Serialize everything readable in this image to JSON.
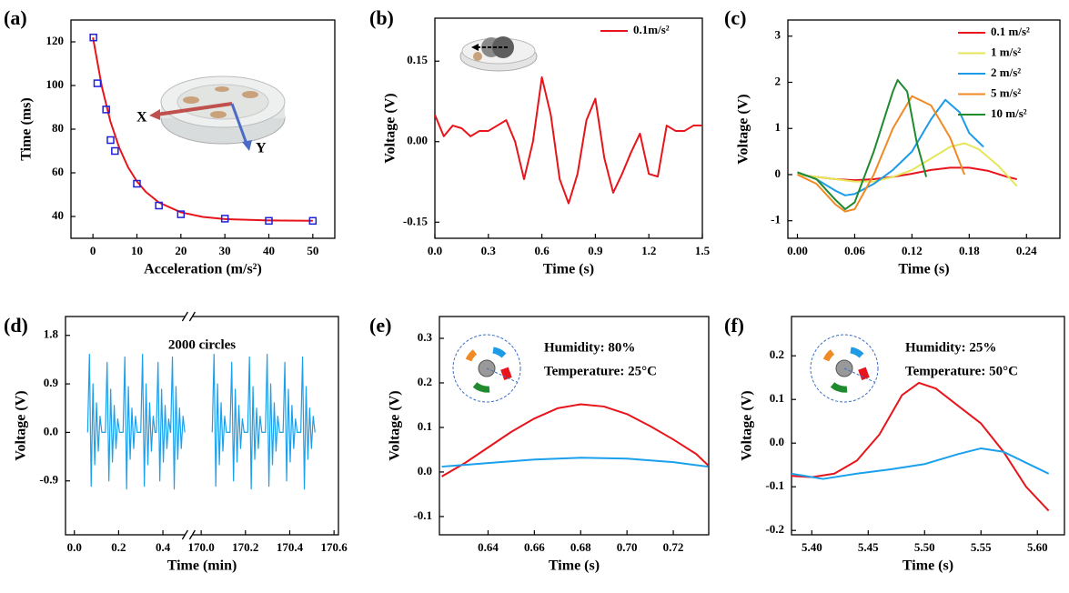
{
  "chart_data": [
    {
      "type": "scatter",
      "panel_label": "(a)",
      "xlabel": "Acceleration (m/s²)",
      "ylabel": "Time (ms)",
      "xlim": [
        -5,
        55
      ],
      "ylim": [
        30,
        130
      ],
      "xticks": [
        0,
        10,
        20,
        30,
        40,
        50
      ],
      "yticks": [
        40,
        60,
        80,
        100,
        120
      ],
      "annotations": [
        "X",
        "Y"
      ],
      "series": [
        {
          "style": "marker",
          "color": "#1f1fd6",
          "x": [
            0.1,
            1,
            3,
            4,
            5,
            10,
            15,
            20,
            30,
            40,
            50
          ],
          "values": [
            122,
            101,
            89,
            75,
            70,
            55,
            45,
            41,
            39,
            38,
            38
          ]
        },
        {
          "style": "line",
          "color": "#e8141b",
          "x": [
            0,
            2,
            4,
            6,
            8,
            10,
            12,
            15,
            20,
            25,
            30,
            40,
            50
          ],
          "values": [
            122,
            99.7,
            83.3,
            71.4,
            62.5,
            56.1,
            51.3,
            46.4,
            41.9,
            39.8,
            38.8,
            38.2,
            38.0
          ]
        }
      ]
    },
    {
      "type": "line",
      "panel_label": "(b)",
      "xlabel": "Time (s)",
      "ylabel": "Voltage (V)",
      "xlim": [
        0,
        1.5
      ],
      "ylim": [
        -0.18,
        0.23
      ],
      "xticks": [
        {
          "value": 0,
          "label": "0.0"
        },
        0.3,
        0.6,
        0.9,
        1.2,
        1.5
      ],
      "yticks": [
        -0.15,
        {
          "value": 0,
          "label": "0.00"
        },
        0.15
      ],
      "legend": "upper right",
      "series": [
        {
          "name": "0.1m/s²",
          "color": "#e8141b",
          "x": [
            0,
            0.05,
            0.1,
            0.15,
            0.2,
            0.25,
            0.3,
            0.35,
            0.4,
            0.45,
            0.5,
            0.55,
            0.6,
            0.65,
            0.7,
            0.75,
            0.8,
            0.85,
            0.9,
            0.95,
            1.0,
            1.05,
            1.1,
            1.15,
            1.2,
            1.25,
            1.3,
            1.35,
            1.4,
            1.45,
            1.5
          ],
          "values": [
            0.05,
            0.01,
            0.03,
            0.025,
            0.01,
            0.02,
            0.02,
            0.03,
            0.04,
            0.0,
            -0.07,
            0.0,
            0.12,
            0.05,
            -0.07,
            -0.115,
            -0.06,
            0.04,
            0.08,
            -0.03,
            -0.095,
            -0.06,
            -0.02,
            0.015,
            -0.06,
            -0.065,
            0.03,
            0.02,
            0.02,
            0.03,
            0.03
          ]
        }
      ]
    },
    {
      "type": "line",
      "panel_label": "(c)",
      "xlabel": "Time (s)",
      "ylabel": "Voltage (V)",
      "xlim": [
        -0.01,
        0.275
      ],
      "ylim": [
        -1.38,
        3.35
      ],
      "xticks": [
        {
          "value": 0,
          "label": "0.00"
        },
        0.06,
        0.12,
        0.18,
        0.24
      ],
      "yticks": [
        -1,
        0,
        1,
        2,
        3
      ],
      "legend": "upper right",
      "series": [
        {
          "name": "0.1 m/s²",
          "color": "#e8141b",
          "x": [
            0,
            0.02,
            0.04,
            0.06,
            0.08,
            0.1,
            0.12,
            0.14,
            0.16,
            0.18,
            0.2,
            0.22,
            0.23
          ],
          "values": [
            0,
            -0.05,
            -0.1,
            -0.12,
            -0.1,
            -0.05,
            0.02,
            0.1,
            0.15,
            0.15,
            0.08,
            -0.05,
            -0.1
          ]
        },
        {
          "name": "1 m/s²",
          "color": "#e6e65a",
          "x": [
            0,
            0.02,
            0.04,
            0.06,
            0.08,
            0.1,
            0.12,
            0.14,
            0.16,
            0.175,
            0.19,
            0.21,
            0.23
          ],
          "values": [
            0,
            -0.05,
            -0.1,
            -0.15,
            -0.15,
            -0.05,
            0.1,
            0.35,
            0.6,
            0.68,
            0.55,
            0.2,
            -0.25
          ]
        },
        {
          "name": "2 m/s²",
          "color": "#1e9be6",
          "x": [
            0,
            0.02,
            0.04,
            0.05,
            0.06,
            0.08,
            0.1,
            0.12,
            0.14,
            0.155,
            0.17,
            0.18,
            0.195
          ],
          "values": [
            0.05,
            -0.1,
            -0.35,
            -0.45,
            -0.42,
            -0.2,
            0.1,
            0.5,
            1.2,
            1.62,
            1.35,
            0.9,
            0.6
          ]
        },
        {
          "name": "5 m/s²",
          "color": "#f08a24",
          "x": [
            0,
            0.02,
            0.04,
            0.05,
            0.06,
            0.08,
            0.1,
            0.12,
            0.14,
            0.16,
            0.175
          ],
          "values": [
            0,
            -0.2,
            -0.65,
            -0.8,
            -0.75,
            0.0,
            1.0,
            1.7,
            1.5,
            0.8,
            0.0
          ]
        },
        {
          "name": "10 m/s²",
          "color": "#1f8a2e",
          "x": [
            0,
            0.02,
            0.04,
            0.05,
            0.06,
            0.08,
            0.1,
            0.105,
            0.115,
            0.125,
            0.135
          ],
          "values": [
            0.05,
            -0.1,
            -0.55,
            -0.75,
            -0.6,
            0.5,
            1.8,
            2.05,
            1.8,
            0.7,
            -0.05
          ]
        }
      ]
    },
    {
      "type": "line",
      "panel_label": "(d)",
      "xlabel": "Time (min)",
      "ylabel": "Voltage (V)",
      "xlim": [
        -0.04,
        170.62
      ],
      "xbreak": [
        0.5,
        169.96
      ],
      "ylim": [
        -1.9,
        2.15
      ],
      "xticks": [
        {
          "value": 0,
          "label": "0.0"
        },
        0.2,
        0.4,
        {
          "value": 170,
          "label": "170.0"
        },
        170.2,
        170.4,
        170.6
      ],
      "yticks": [
        -0.9,
        {
          "value": 0,
          "label": "0.0"
        },
        0.9,
        1.8
      ],
      "annotations": [
        "2000 circles"
      ],
      "series": [
        {
          "color": "#1aa0ec",
          "x": [
            0.06,
            0.068,
            0.076,
            0.084,
            0.092,
            0.1,
            0.108,
            0.116,
            0.124,
            0.14,
            0.148,
            0.156,
            0.164,
            0.172,
            0.18,
            0.188,
            0.196,
            0.204,
            0.22,
            0.228,
            0.236,
            0.244,
            0.252,
            0.26,
            0.268,
            0.276,
            0.284,
            0.3,
            0.308,
            0.316,
            0.324,
            0.332,
            0.34,
            0.348,
            0.356,
            0.364,
            0.37,
            0.378,
            0.386,
            0.394,
            0.402,
            0.41,
            0.418,
            0.426,
            0.434,
            0.435,
            0.443,
            0.451,
            0.459,
            0.467,
            0.475,
            0.483,
            0.491,
            0.499,
            0.5,
            170.05,
            170.058,
            170.066,
            170.074,
            170.082,
            170.09,
            170.098,
            170.106,
            170.114,
            170.13,
            170.138,
            170.146,
            170.154,
            170.162,
            170.17,
            170.178,
            170.186,
            170.194,
            170.21,
            170.218,
            170.226,
            170.234,
            170.242,
            170.25,
            170.258,
            170.266,
            170.274,
            170.29,
            170.298,
            170.306,
            170.314,
            170.322,
            170.33,
            170.338,
            170.346,
            170.354,
            170.37,
            170.378,
            170.386,
            170.394,
            170.402,
            170.41,
            170.418,
            170.426,
            170.434,
            170.45,
            170.458,
            170.466,
            170.474,
            170.482,
            170.49,
            170.498,
            170.506,
            170.514
          ],
          "values": [
            0,
            1.45,
            -1.0,
            0.9,
            -0.6,
            0.55,
            -0.35,
            0.3,
            0,
            0,
            1.3,
            -0.9,
            0.8,
            -0.55,
            0.5,
            -0.3,
            0.25,
            0,
            0,
            1.4,
            -1.05,
            0.85,
            -0.5,
            0.45,
            -0.3,
            0.3,
            0,
            0,
            1.45,
            -1.0,
            0.9,
            -0.6,
            0.55,
            -0.35,
            0.3,
            0,
            0,
            1.3,
            -0.9,
            0.8,
            -0.55,
            0.5,
            -0.3,
            0.25,
            0,
            0,
            1.4,
            -1.05,
            0.85,
            -0.5,
            0.45,
            -0.3,
            0.3,
            0,
            null,
            0,
            1.45,
            -1.0,
            0.9,
            -0.6,
            0.55,
            -0.35,
            0.3,
            0,
            0,
            1.3,
            -0.9,
            0.8,
            -0.55,
            0.5,
            -0.3,
            0.25,
            0,
            0,
            1.4,
            -1.05,
            0.85,
            -0.5,
            0.45,
            -0.3,
            0.3,
            0,
            0,
            1.45,
            -1.0,
            0.9,
            -0.6,
            0.55,
            -0.35,
            0.3,
            0,
            0,
            1.3,
            -0.9,
            0.8,
            -0.55,
            0.5,
            -0.3,
            0.25,
            0,
            0,
            1.4,
            -1.05,
            0.85,
            -0.5,
            0.45,
            -0.3,
            0.3,
            0
          ]
        }
      ]
    },
    {
      "type": "line",
      "panel_label": "(e)",
      "xlabel": "Time (s)",
      "ylabel": "Voltage (V)",
      "xlim": [
        0.619,
        0.7353
      ],
      "ylim": [
        -0.141,
        0.349
      ],
      "xticks": [
        0.64,
        0.66,
        0.68,
        {
          "value": 0.7,
          "label": "0.70"
        },
        0.72
      ],
      "yticks": [
        -0.1,
        {
          "value": 0,
          "label": "0.0"
        },
        0.1,
        0.2,
        0.3
      ],
      "annotations": [
        "Humidity: 80%",
        "Temperature: 25°C"
      ],
      "series": [
        {
          "color": "#e8141b",
          "x": [
            0.62,
            0.63,
            0.64,
            0.65,
            0.66,
            0.67,
            0.68,
            0.69,
            0.7,
            0.71,
            0.72,
            0.73,
            0.735
          ],
          "values": [
            -0.01,
            0.02,
            0.055,
            0.09,
            0.12,
            0.143,
            0.152,
            0.147,
            0.13,
            0.103,
            0.073,
            0.04,
            0.015
          ]
        },
        {
          "color": "#1aa0ec",
          "x": [
            0.62,
            0.64,
            0.66,
            0.68,
            0.7,
            0.72,
            0.735
          ],
          "values": [
            0.012,
            0.02,
            0.028,
            0.032,
            0.03,
            0.022,
            0.012
          ]
        }
      ]
    },
    {
      "type": "line",
      "panel_label": "(f)",
      "xlabel": "Time (s)",
      "ylabel": "Voltage (V)",
      "xlim": [
        5.382,
        5.624
      ],
      "ylim": [
        -0.21,
        0.29
      ],
      "xticks": [
        {
          "value": 5.4,
          "label": "5.40"
        },
        5.45,
        {
          "value": 5.5,
          "label": "5.50"
        },
        5.55,
        {
          "value": 5.6,
          "label": "5.60"
        }
      ],
      "yticks": [
        -0.2,
        -0.1,
        {
          "value": 0,
          "label": "0.0"
        },
        0.1,
        0.2
      ],
      "annotations": [
        "Humidity: 25%",
        "Temperature: 50°C"
      ],
      "series": [
        {
          "color": "#e8141b",
          "x": [
            5.382,
            5.4,
            5.42,
            5.44,
            5.46,
            5.48,
            5.495,
            5.51,
            5.53,
            5.55,
            5.57,
            5.59,
            5.61
          ],
          "values": [
            -0.075,
            -0.078,
            -0.07,
            -0.04,
            0.02,
            0.11,
            0.138,
            0.125,
            0.085,
            0.045,
            -0.02,
            -0.1,
            -0.155
          ]
        },
        {
          "color": "#1aa0ec",
          "x": [
            5.382,
            5.41,
            5.44,
            5.47,
            5.5,
            5.53,
            5.55,
            5.57,
            5.59,
            5.61
          ],
          "values": [
            -0.07,
            -0.082,
            -0.07,
            -0.06,
            -0.048,
            -0.025,
            -0.012,
            -0.02,
            -0.045,
            -0.07
          ]
        }
      ]
    }
  ]
}
